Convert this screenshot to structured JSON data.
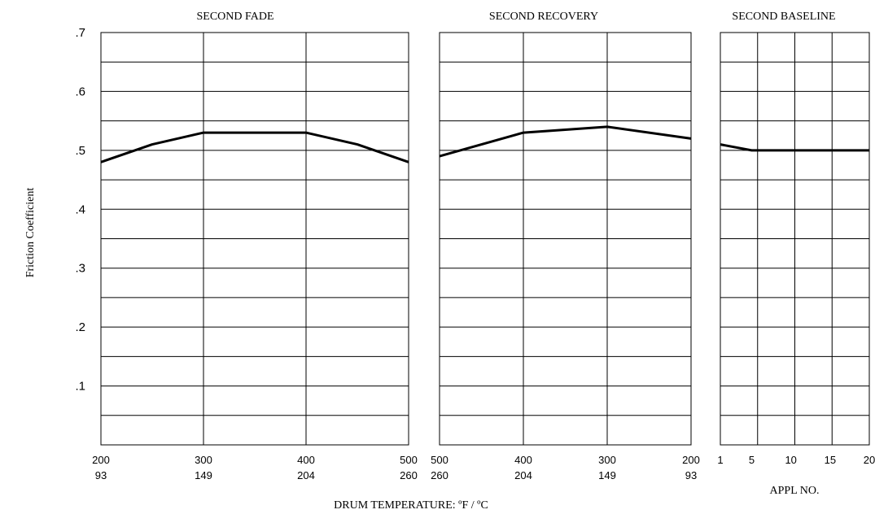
{
  "colors": {
    "line": "#000000",
    "grid": "#000000",
    "background": "#ffffff"
  },
  "y_axis": {
    "label": "Friction Coefficient",
    "range": [
      0,
      0.7
    ],
    "ticks": [
      {
        "value": 0.7,
        "label": ".7"
      },
      {
        "value": 0.6,
        "label": ".6"
      },
      {
        "value": 0.5,
        "label": ".5"
      },
      {
        "value": 0.4,
        "label": ".4"
      },
      {
        "value": 0.3,
        "label": ".3"
      },
      {
        "value": 0.2,
        "label": ".2"
      },
      {
        "value": 0.1,
        "label": ".1"
      }
    ]
  },
  "x_axis_label": "DRUM TEMPERATURE: ºF / ºC",
  "chart_data": [
    {
      "type": "line",
      "title": "SECOND FADE",
      "xlabel": "",
      "ylabel": "Friction Coefficient",
      "xlim": [
        200,
        500
      ],
      "ylim": [
        0,
        0.7
      ],
      "grid": true,
      "tick_labels": [
        {
          "value": 200,
          "primary": "200",
          "secondary": "93"
        },
        {
          "value": 300,
          "primary": "300",
          "secondary": "149"
        },
        {
          "value": 400,
          "primary": "400",
          "secondary": "204"
        },
        {
          "value": 500,
          "primary": "500",
          "secondary": "260"
        }
      ],
      "series": [
        {
          "x": [
            200,
            250,
            300,
            350,
            400,
            450,
            500
          ],
          "y": [
            0.48,
            0.51,
            0.53,
            0.53,
            0.53,
            0.51,
            0.48
          ]
        }
      ]
    },
    {
      "type": "line",
      "title": "SECOND RECOVERY",
      "xlabel": "",
      "ylabel": "Friction Coefficient",
      "xlim": [
        500,
        200
      ],
      "ylim": [
        0,
        0.7
      ],
      "grid": true,
      "tick_labels": [
        {
          "value": 500,
          "primary": "500",
          "secondary": "260"
        },
        {
          "value": 400,
          "primary": "400",
          "secondary": "204"
        },
        {
          "value": 300,
          "primary": "300",
          "secondary": "149"
        },
        {
          "value": 200,
          "primary": "200",
          "secondary": "93"
        }
      ],
      "series": [
        {
          "x": [
            500,
            400,
            300,
            200
          ],
          "y": [
            0.49,
            0.53,
            0.54,
            0.52
          ]
        }
      ]
    },
    {
      "type": "line",
      "title": "SECOND BASELINE",
      "xlabel": "APPL NO.",
      "ylabel": "Friction Coefficient",
      "xlim": [
        1,
        20
      ],
      "ylim": [
        0,
        0.7
      ],
      "grid": true,
      "tick_labels": [
        {
          "value": 1,
          "primary": "1"
        },
        {
          "value": 5,
          "primary": "5"
        },
        {
          "value": 10,
          "primary": "10"
        },
        {
          "value": 15,
          "primary": "15"
        },
        {
          "value": 20,
          "primary": "20"
        }
      ],
      "series": [
        {
          "x": [
            1,
            5,
            10,
            15,
            20
          ],
          "y": [
            0.51,
            0.5,
            0.5,
            0.5,
            0.5
          ]
        }
      ]
    }
  ]
}
